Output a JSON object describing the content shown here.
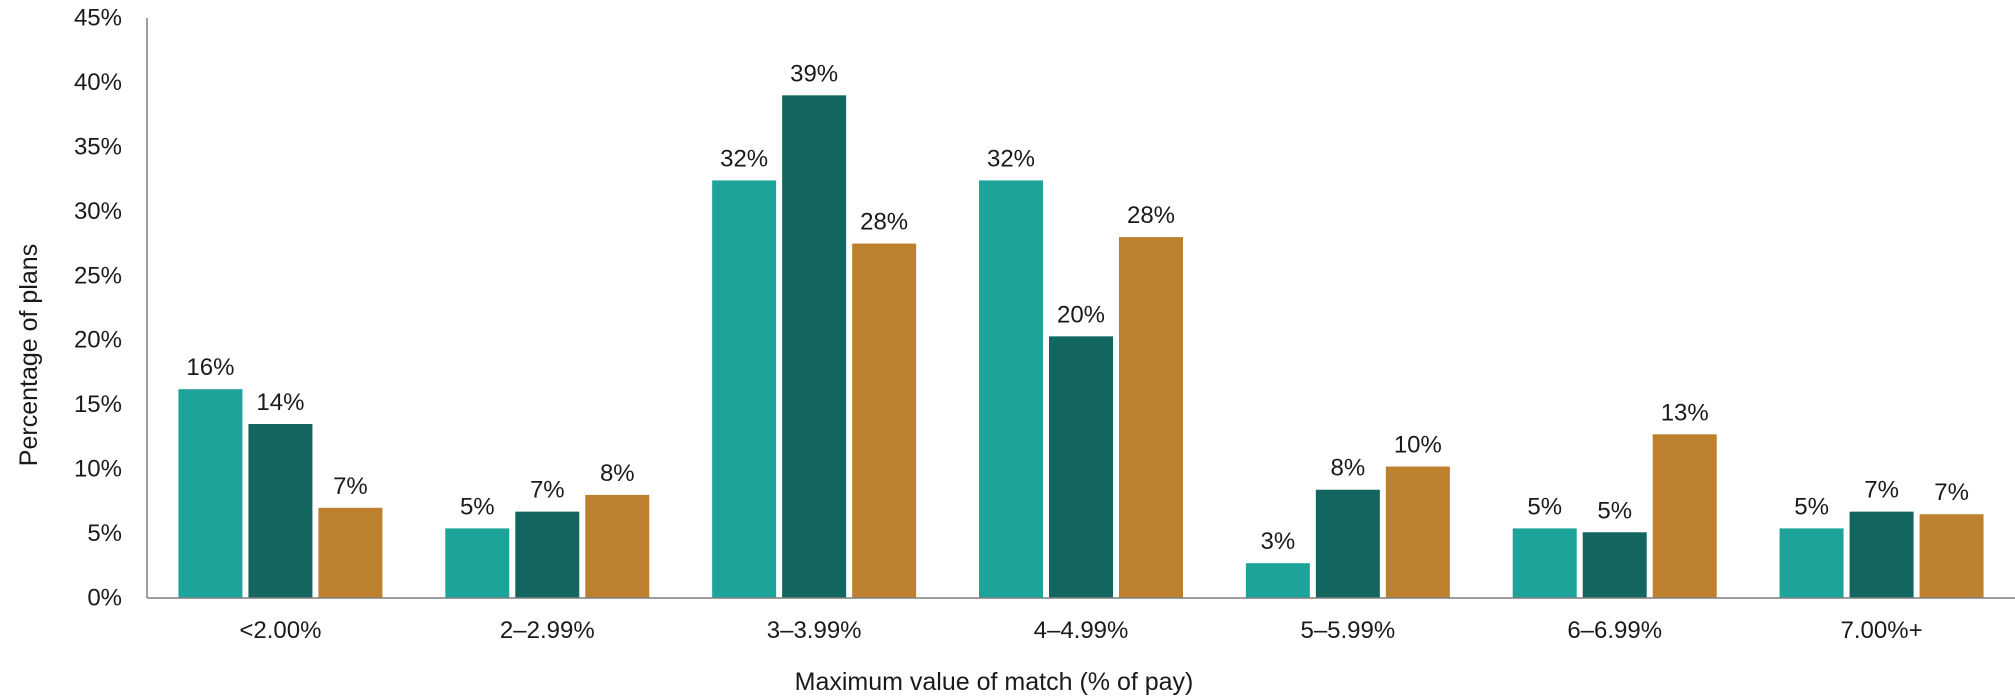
{
  "chart_data": {
    "type": "bar",
    "title": "",
    "xlabel": "Maximum value of match (% of pay)",
    "ylabel": "Percentage of plans",
    "ylim": [
      0,
      45
    ],
    "yticks": [
      "0%",
      "5%",
      "10%",
      "15%",
      "20%",
      "25%",
      "30%",
      "35%",
      "40%",
      "45%"
    ],
    "grid": false,
    "legend": "none",
    "categories": [
      "<2.00%",
      "2–2.99%",
      "3–3.99%",
      "4–4.99%",
      "5–5.99%",
      "6–6.99%",
      "7.00%+"
    ],
    "series": [
      {
        "color": "#1ea39a",
        "values": [
          16.2,
          5.4,
          32.4,
          32.4,
          2.7,
          5.4,
          5.4
        ],
        "labels": [
          "16%",
          "5%",
          "32%",
          "32%",
          "3%",
          "5%",
          "5%"
        ]
      },
      {
        "color": "#13655f",
        "values": [
          13.5,
          6.7,
          39.0,
          20.3,
          8.4,
          5.1,
          6.7
        ],
        "labels": [
          "14%",
          "7%",
          "39%",
          "20%",
          "8%",
          "5%",
          "7%"
        ]
      },
      {
        "color": "#bc802e",
        "values": [
          7.0,
          8.0,
          27.5,
          28.0,
          10.2,
          12.7,
          6.5
        ],
        "labels": [
          "7%",
          "8%",
          "28%",
          "28%",
          "10%",
          "13%",
          "7%"
        ]
      }
    ]
  }
}
